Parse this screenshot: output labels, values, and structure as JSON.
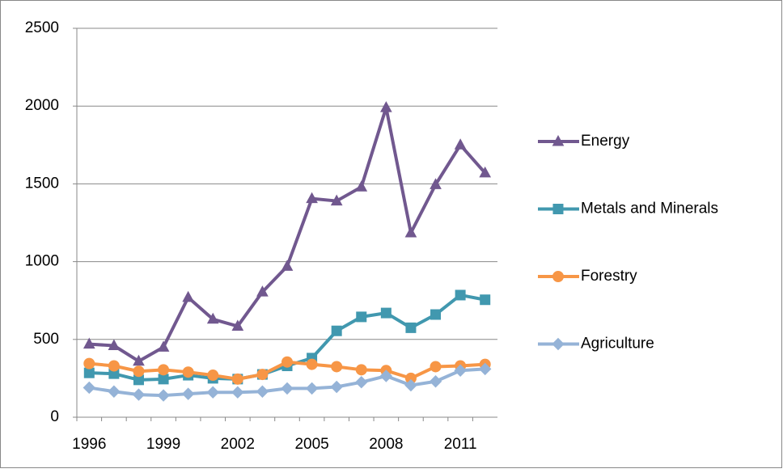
{
  "chart_data": {
    "type": "line",
    "categories": [
      "1996",
      null,
      null,
      "1999",
      null,
      null,
      "2002",
      null,
      null,
      "2005",
      null,
      null,
      "2008",
      null,
      null,
      "2011",
      null
    ],
    "series": [
      {
        "name": "Energy",
        "color": "#71588f",
        "values": [
          470,
          460,
          360,
          450,
          770,
          630,
          585,
          805,
          970,
          1405,
          1390,
          1480,
          1990,
          1185,
          1495,
          1750,
          1570
        ]
      },
      {
        "name": "Metals and Minerals",
        "color": "#4198af",
        "values": [
          285,
          280,
          240,
          245,
          270,
          250,
          245,
          275,
          330,
          380,
          555,
          645,
          670,
          575,
          660,
          785,
          755
        ]
      },
      {
        "name": "Forestry",
        "color": "#f79646",
        "values": [
          345,
          330,
          295,
          305,
          290,
          270,
          245,
          275,
          355,
          340,
          325,
          305,
          300,
          250,
          325,
          330,
          340
        ]
      },
      {
        "name": "Agriculture",
        "color": "#95b3d7",
        "values": [
          190,
          165,
          145,
          140,
          150,
          160,
          160,
          165,
          185,
          185,
          195,
          225,
          265,
          205,
          230,
          300,
          310
        ]
      }
    ],
    "ylim": [
      0,
      2500
    ],
    "yticks": [
      0,
      500,
      1000,
      1500,
      2000,
      2500
    ],
    "grid": true,
    "legend": "right"
  }
}
